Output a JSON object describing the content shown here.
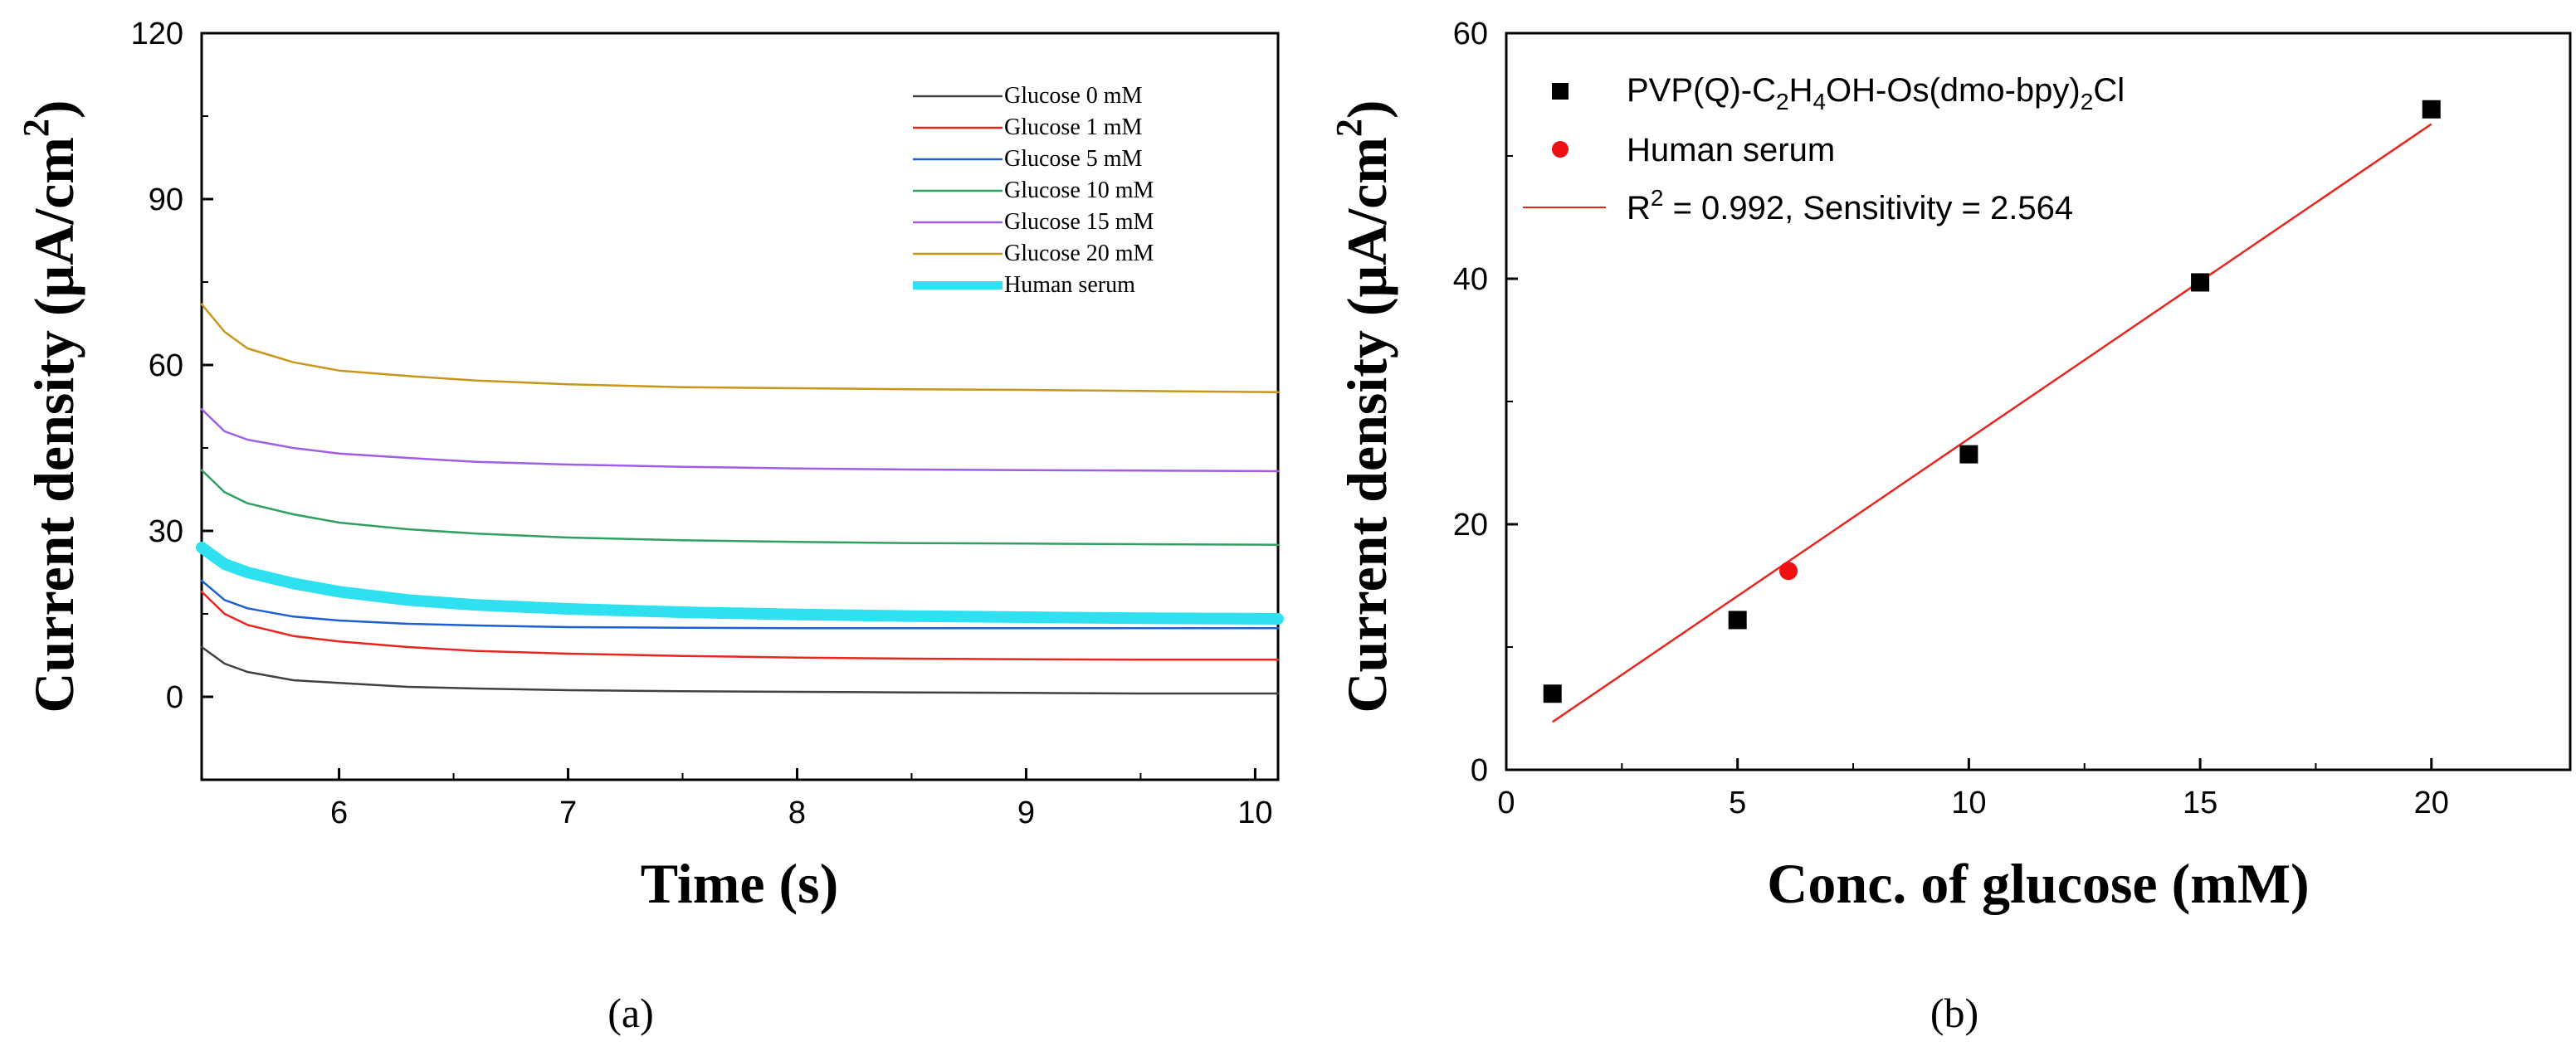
{
  "chart_data": [
    {
      "panel": "a",
      "type": "line",
      "title": "",
      "xlabel": "Time (s)",
      "ylabel_prefix": "Current density (",
      "ylabel_unit": "μA/cm",
      "ylabel_sup": "2",
      "ylabel_suffix": ")",
      "xlim": [
        5.4,
        10.1
      ],
      "ylim": [
        -15,
        120
      ],
      "xticks": [
        6,
        7,
        8,
        9,
        10
      ],
      "yticks": [
        0,
        30,
        60,
        90,
        120
      ],
      "xtick_labels": [
        "6",
        "7",
        "8",
        "9",
        "10"
      ],
      "ytick_labels": [
        "0",
        "30",
        "60",
        "90",
        "120"
      ],
      "legend_position": "top-right",
      "caption": "(a)",
      "series": [
        {
          "name": "Glucose 0 mM",
          "color": "#404040",
          "width": "thin",
          "x": [
            5.4,
            5.5,
            5.6,
            5.8,
            6.0,
            6.3,
            6.6,
            7.0,
            7.5,
            8.0,
            8.5,
            9.0,
            9.5,
            10.1
          ],
          "y": [
            9,
            6,
            4.5,
            3,
            2.5,
            1.8,
            1.5,
            1.2,
            1.0,
            0.9,
            0.8,
            0.7,
            0.6,
            0.6
          ]
        },
        {
          "name": "Glucose 1 mM",
          "color": "#e8251e",
          "width": "thin",
          "x": [
            5.4,
            5.5,
            5.6,
            5.8,
            6.0,
            6.3,
            6.6,
            7.0,
            7.5,
            8.0,
            8.5,
            9.0,
            9.5,
            10.1
          ],
          "y": [
            19,
            15,
            13,
            11,
            10,
            9,
            8.3,
            7.8,
            7.4,
            7.1,
            6.9,
            6.8,
            6.7,
            6.7
          ]
        },
        {
          "name": "Glucose 5 mM",
          "color": "#1f5fd1",
          "width": "thin",
          "x": [
            5.4,
            5.5,
            5.6,
            5.8,
            6.0,
            6.3,
            6.6,
            7.0,
            7.5,
            8.0,
            8.5,
            9.0,
            9.5,
            10.1
          ],
          "y": [
            21,
            17.5,
            16,
            14.5,
            13.8,
            13.2,
            12.9,
            12.6,
            12.5,
            12.4,
            12.4,
            12.4,
            12.4,
            12.4
          ]
        },
        {
          "name": "Glucose 10 mM",
          "color": "#2ea060",
          "width": "thin",
          "x": [
            5.4,
            5.5,
            5.6,
            5.8,
            6.0,
            6.3,
            6.6,
            7.0,
            7.5,
            8.0,
            8.5,
            9.0,
            9.5,
            10.1
          ],
          "y": [
            41,
            37,
            35,
            33,
            31.5,
            30.3,
            29.5,
            28.8,
            28.3,
            28.0,
            27.8,
            27.7,
            27.6,
            27.5
          ]
        },
        {
          "name": "Glucose 15 mM",
          "color": "#a15de6",
          "width": "thin",
          "x": [
            5.4,
            5.5,
            5.6,
            5.8,
            6.0,
            6.3,
            6.6,
            7.0,
            7.5,
            8.0,
            8.5,
            9.0,
            9.5,
            10.1
          ],
          "y": [
            52,
            48,
            46.5,
            45,
            44,
            43.2,
            42.5,
            42,
            41.6,
            41.3,
            41.1,
            41.0,
            40.9,
            40.8
          ]
        },
        {
          "name": "Glucose 20 mM",
          "color": "#c8961a",
          "width": "thin",
          "x": [
            5.4,
            5.5,
            5.6,
            5.8,
            6.0,
            6.3,
            6.6,
            7.0,
            7.5,
            8.0,
            8.5,
            9.0,
            9.5,
            10.1
          ],
          "y": [
            71,
            66,
            63,
            60.5,
            59,
            58,
            57.2,
            56.5,
            56.0,
            55.8,
            55.6,
            55.5,
            55.3,
            55.1
          ]
        },
        {
          "name": "Human serum",
          "color": "#2ee0f0",
          "width": "thick",
          "x": [
            5.4,
            5.5,
            5.6,
            5.8,
            6.0,
            6.3,
            6.6,
            7.0,
            7.5,
            8.0,
            8.5,
            9.0,
            9.5,
            10.1
          ],
          "y": [
            27,
            24,
            22.5,
            20.5,
            19,
            17.5,
            16.6,
            15.9,
            15.3,
            14.9,
            14.6,
            14.4,
            14.2,
            14.1
          ]
        }
      ]
    },
    {
      "panel": "b",
      "type": "scatter",
      "title": "",
      "xlabel": "Conc. of glucose (mM)",
      "ylabel_prefix": "Current density (",
      "ylabel_unit": "μA/cm",
      "ylabel_sup": "2",
      "ylabel_suffix": ")",
      "xlim": [
        0,
        23
      ],
      "ylim": [
        0,
        60
      ],
      "xticks": [
        0,
        5,
        10,
        15,
        20
      ],
      "yticks": [
        0,
        20,
        40,
        60
      ],
      "xtick_labels": [
        "0",
        "5",
        "10",
        "15",
        "20"
      ],
      "ytick_labels": [
        "0",
        "20",
        "40",
        "60"
      ],
      "legend_position": "top-left",
      "caption": "(b)",
      "series": [
        {
          "name": "PVP(Q)-C2H4OH-Os(dmo-bpy)2Cl",
          "marker": "square",
          "color": "#000000",
          "x": [
            1,
            5,
            10,
            15,
            20
          ],
          "y": [
            6.2,
            12.2,
            25.7,
            39.7,
            53.8
          ]
        },
        {
          "name": "Human serum",
          "marker": "circle",
          "color": "#ee1111",
          "x": [
            6.1
          ],
          "y": [
            16.2
          ]
        }
      ],
      "fit": {
        "x": [
          1,
          20
        ],
        "y": [
          3.9,
          52.6
        ],
        "color": "#e8251e"
      },
      "legend_fit": {
        "r_label": "R",
        "r_sup": "2",
        "rest": " = 0.992, Sensitivity = 2.564"
      },
      "legend_square": {
        "seg1": "PVP(Q)-C",
        "sub1": "2",
        "seg2": "H",
        "sub2": "4",
        "seg3": "OH-Os(dmo-bpy)",
        "sub3": "2",
        "seg4": "Cl"
      }
    }
  ]
}
